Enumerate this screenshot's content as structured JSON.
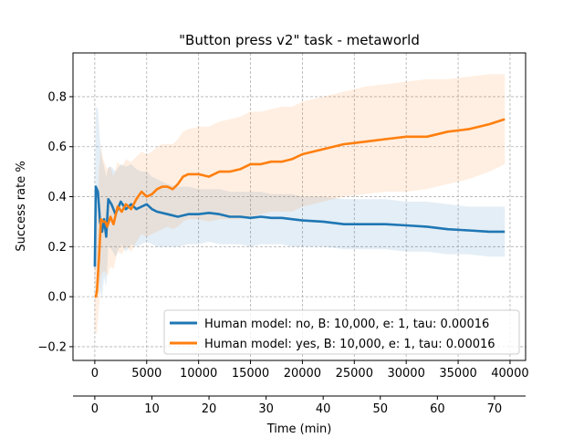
{
  "chart_data": {
    "type": "line",
    "title": "\"Button press v2\" task - metaworld",
    "ylabel": "Success rate %",
    "xlabel": "",
    "secondary_xlabel": "Time (min)",
    "xlim": [
      -2100,
      41500
    ],
    "ylim": [
      -0.255,
      0.975
    ],
    "x_ticks": [
      0,
      5000,
      10000,
      15000,
      20000,
      25000,
      30000,
      35000,
      40000
    ],
    "x_tick_labels": [
      "0",
      "5000",
      "10000",
      "15000",
      "20000",
      "25000",
      "30000",
      "35000",
      "40000"
    ],
    "y_ticks": [
      -0.2,
      0.0,
      0.2,
      0.4,
      0.6,
      0.8
    ],
    "y_tick_labels": [
      "−0.2",
      "0.0",
      "0.2",
      "0.4",
      "0.6",
      "0.8"
    ],
    "secondary_x_ticks": [
      0,
      10,
      20,
      30,
      40,
      50,
      60,
      70
    ],
    "secondary_x_tick_labels": [
      "0",
      "10",
      "20",
      "30",
      "40",
      "50",
      "60",
      "70"
    ],
    "secondary_x_per_step": 0.001818,
    "grid": true,
    "legend_position": "lower-right",
    "series": [
      {
        "name": "Human model: no, B: 10,000, e: 1, tau: 0.00016",
        "color": "#1f77b4",
        "x": [
          0,
          100,
          300,
          500,
          700,
          900,
          1100,
          1300,
          1600,
          2000,
          2500,
          3000,
          3500,
          4000,
          4500,
          5000,
          5500,
          6000,
          7000,
          8000,
          9000,
          10000,
          11000,
          12000,
          13000,
          14000,
          15000,
          16000,
          17000,
          18000,
          19000,
          20000,
          22000,
          24000,
          26000,
          28000,
          30000,
          32000,
          34000,
          36000,
          38000,
          39500
        ],
        "y": [
          0.12,
          0.44,
          0.42,
          0.3,
          0.26,
          0.31,
          0.24,
          0.39,
          0.37,
          0.33,
          0.38,
          0.35,
          0.37,
          0.35,
          0.36,
          0.37,
          0.35,
          0.34,
          0.33,
          0.32,
          0.33,
          0.33,
          0.335,
          0.33,
          0.32,
          0.32,
          0.315,
          0.32,
          0.315,
          0.315,
          0.31,
          0.305,
          0.3,
          0.29,
          0.29,
          0.29,
          0.285,
          0.28,
          0.27,
          0.265,
          0.26,
          0.26
        ],
        "upper": [
          0.25,
          0.76,
          0.75,
          0.62,
          0.55,
          0.52,
          0.48,
          0.52,
          0.52,
          0.5,
          0.53,
          0.52,
          0.53,
          0.51,
          0.5,
          0.5,
          0.48,
          0.47,
          0.45,
          0.44,
          0.44,
          0.43,
          0.43,
          0.43,
          0.42,
          0.42,
          0.42,
          0.42,
          0.41,
          0.41,
          0.41,
          0.4,
          0.4,
          0.39,
          0.39,
          0.39,
          0.38,
          0.38,
          0.37,
          0.36,
          0.36,
          0.36
        ],
        "lower": [
          0.0,
          0.13,
          0.1,
          0.02,
          0.0,
          0.08,
          0.04,
          0.2,
          0.19,
          0.16,
          0.21,
          0.18,
          0.21,
          0.2,
          0.21,
          0.22,
          0.21,
          0.2,
          0.2,
          0.2,
          0.21,
          0.21,
          0.22,
          0.21,
          0.21,
          0.21,
          0.2,
          0.21,
          0.21,
          0.21,
          0.2,
          0.2,
          0.2,
          0.19,
          0.19,
          0.19,
          0.18,
          0.18,
          0.17,
          0.17,
          0.16,
          0.16
        ]
      },
      {
        "name": "Human model: yes, B: 10,000, e: 1, tau: 0.00016",
        "color": "#ff7f0e",
        "x": [
          0,
          100,
          200,
          400,
          600,
          800,
          1000,
          1200,
          1500,
          1800,
          2200,
          2600,
          3000,
          3500,
          4000,
          4500,
          5000,
          5500,
          6000,
          6500,
          7000,
          7500,
          8000,
          8500,
          9000,
          10000,
          11000,
          12000,
          13000,
          14000,
          15000,
          16000,
          17000,
          18000,
          19000,
          20000,
          22000,
          24000,
          26000,
          28000,
          30000,
          32000,
          34000,
          36000,
          38000,
          39500
        ],
        "y": [
          0.0,
          0.0,
          0.02,
          0.15,
          0.31,
          0.3,
          0.3,
          0.28,
          0.32,
          0.29,
          0.36,
          0.34,
          0.37,
          0.35,
          0.39,
          0.42,
          0.4,
          0.41,
          0.43,
          0.44,
          0.44,
          0.43,
          0.45,
          0.48,
          0.49,
          0.49,
          0.48,
          0.5,
          0.5,
          0.51,
          0.53,
          0.53,
          0.54,
          0.54,
          0.55,
          0.57,
          0.59,
          0.61,
          0.62,
          0.63,
          0.64,
          0.64,
          0.66,
          0.67,
          0.69,
          0.71
        ],
        "upper": [
          0.13,
          0.15,
          0.3,
          0.5,
          0.6,
          0.55,
          0.53,
          0.51,
          0.52,
          0.48,
          0.54,
          0.52,
          0.55,
          0.54,
          0.56,
          0.58,
          0.57,
          0.58,
          0.6,
          0.61,
          0.61,
          0.61,
          0.63,
          0.66,
          0.67,
          0.68,
          0.68,
          0.7,
          0.71,
          0.72,
          0.74,
          0.74,
          0.75,
          0.76,
          0.76,
          0.78,
          0.8,
          0.82,
          0.84,
          0.85,
          0.86,
          0.87,
          0.87,
          0.88,
          0.89,
          0.89
        ],
        "lower": [
          -0.13,
          -0.15,
          -0.15,
          -0.05,
          0.08,
          0.1,
          0.1,
          0.08,
          0.12,
          0.11,
          0.18,
          0.17,
          0.2,
          0.18,
          0.22,
          0.25,
          0.24,
          0.25,
          0.26,
          0.27,
          0.28,
          0.27,
          0.28,
          0.3,
          0.31,
          0.31,
          0.3,
          0.31,
          0.31,
          0.31,
          0.32,
          0.33,
          0.34,
          0.34,
          0.34,
          0.36,
          0.38,
          0.4,
          0.41,
          0.42,
          0.42,
          0.43,
          0.45,
          0.47,
          0.5,
          0.53
        ]
      }
    ]
  }
}
